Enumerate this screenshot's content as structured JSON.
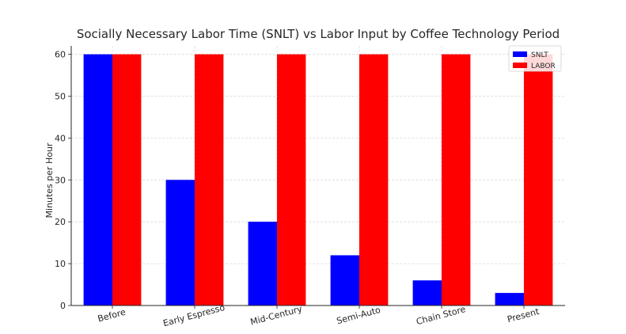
{
  "chart_data": {
    "type": "bar",
    "title": "Socially Necessary Labor Time (SNLT) vs Labor Input by Coffee Technology Period",
    "xlabel": "",
    "ylabel": "Minutes per Hour",
    "categories": [
      "Before",
      "Early Espresso",
      "Mid-Century",
      "Semi-Auto",
      "Chain Store",
      "Present"
    ],
    "series": [
      {
        "name": "SNLT",
        "values": [
          60,
          30,
          20,
          12,
          6,
          3
        ],
        "color": "#0000ff"
      },
      {
        "name": "LABOR",
        "values": [
          60,
          60,
          60,
          60,
          60,
          60
        ],
        "color": "#ff0000"
      }
    ],
    "ylim": [
      0,
      62
    ],
    "yticks": [
      0,
      10,
      20,
      30,
      40,
      50,
      60
    ],
    "grid": true,
    "legend_position": "top-right",
    "xtick_rotation_deg": 15
  }
}
